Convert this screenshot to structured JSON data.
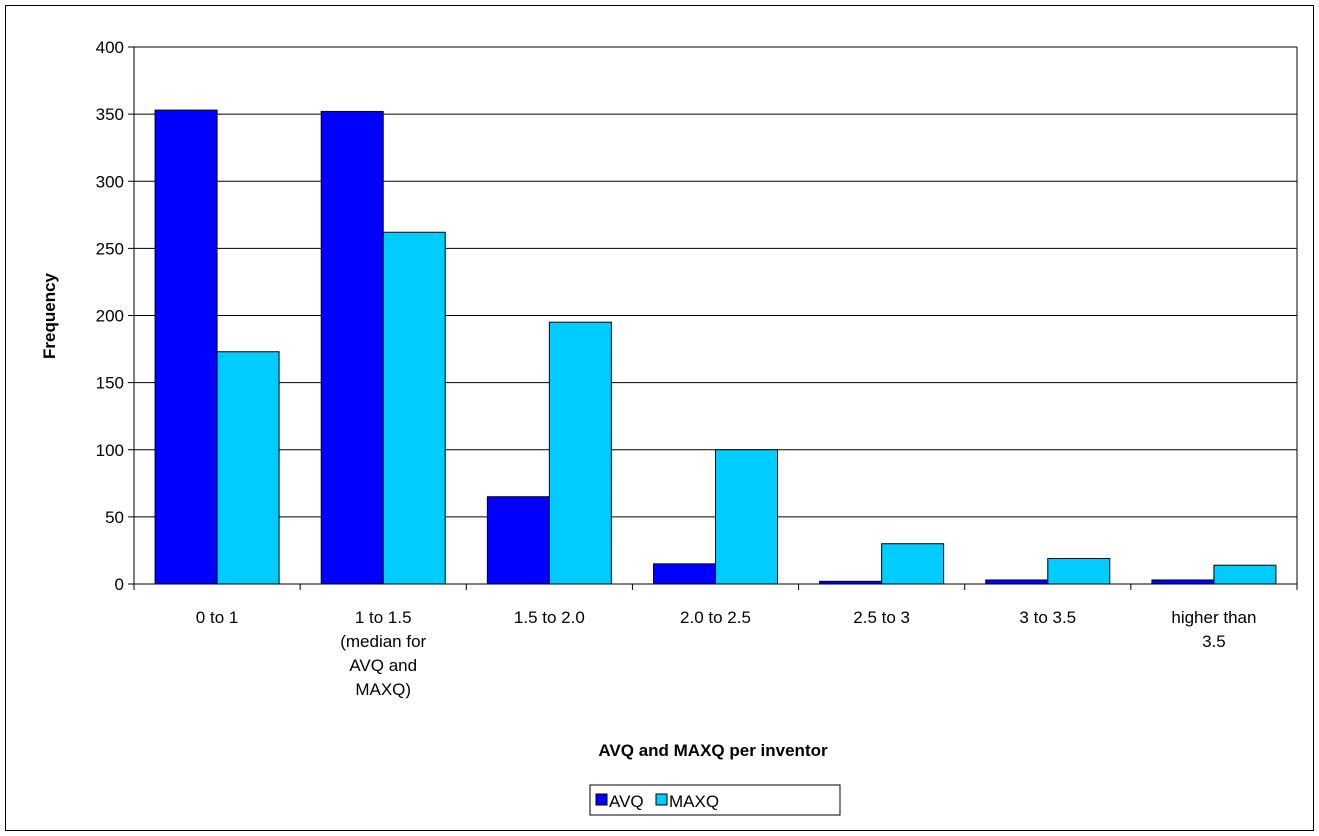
{
  "chart_data": {
    "type": "bar",
    "title": "",
    "xlabel": "AVQ and MAXQ per inventor",
    "ylabel": "Frequency",
    "ylim": [
      0,
      400
    ],
    "yticks": [
      0,
      50,
      100,
      150,
      200,
      250,
      300,
      350,
      400
    ],
    "grid": "horizontal",
    "legend_position": "bottom",
    "categories": [
      [
        "0 to 1"
      ],
      [
        "1 to 1.5",
        "(median for",
        "AVQ and",
        "MAXQ)"
      ],
      [
        "1.5 to 2.0"
      ],
      [
        "2.0 to 2.5"
      ],
      [
        "2.5 to 3"
      ],
      [
        "3 to 3.5"
      ],
      [
        "higher than",
        "3.5"
      ]
    ],
    "series": [
      {
        "name": "AVQ",
        "color": "#0000FF",
        "values": [
          353,
          352,
          65,
          15,
          2,
          3,
          3
        ]
      },
      {
        "name": "MAXQ",
        "color": "#00CCFF",
        "values": [
          173,
          262,
          195,
          100,
          30,
          19,
          14
        ]
      }
    ]
  }
}
